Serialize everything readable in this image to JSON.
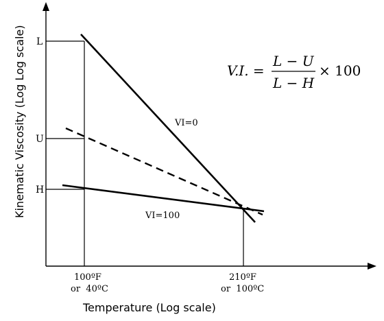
{
  "formula": {
    "lhs": "V.I. =",
    "numerator": "L − U",
    "denominator": "L − H",
    "multiplier": "× 100"
  },
  "axes": {
    "y_label": "Kinematic Viscosity (Log Log scale)",
    "x_label": "Temperature (Log scale)",
    "y_ticks": {
      "L": "L",
      "U": "U",
      "H": "H"
    },
    "x_ticks": {
      "t1_line1": "100ºF",
      "t1_line2": "or  40ºC",
      "t2_line1": "210ºF",
      "t2_line2": "or  100ºC"
    }
  },
  "lines": {
    "vi0_label": "VI=0",
    "vi100_label": "VI=100"
  }
}
